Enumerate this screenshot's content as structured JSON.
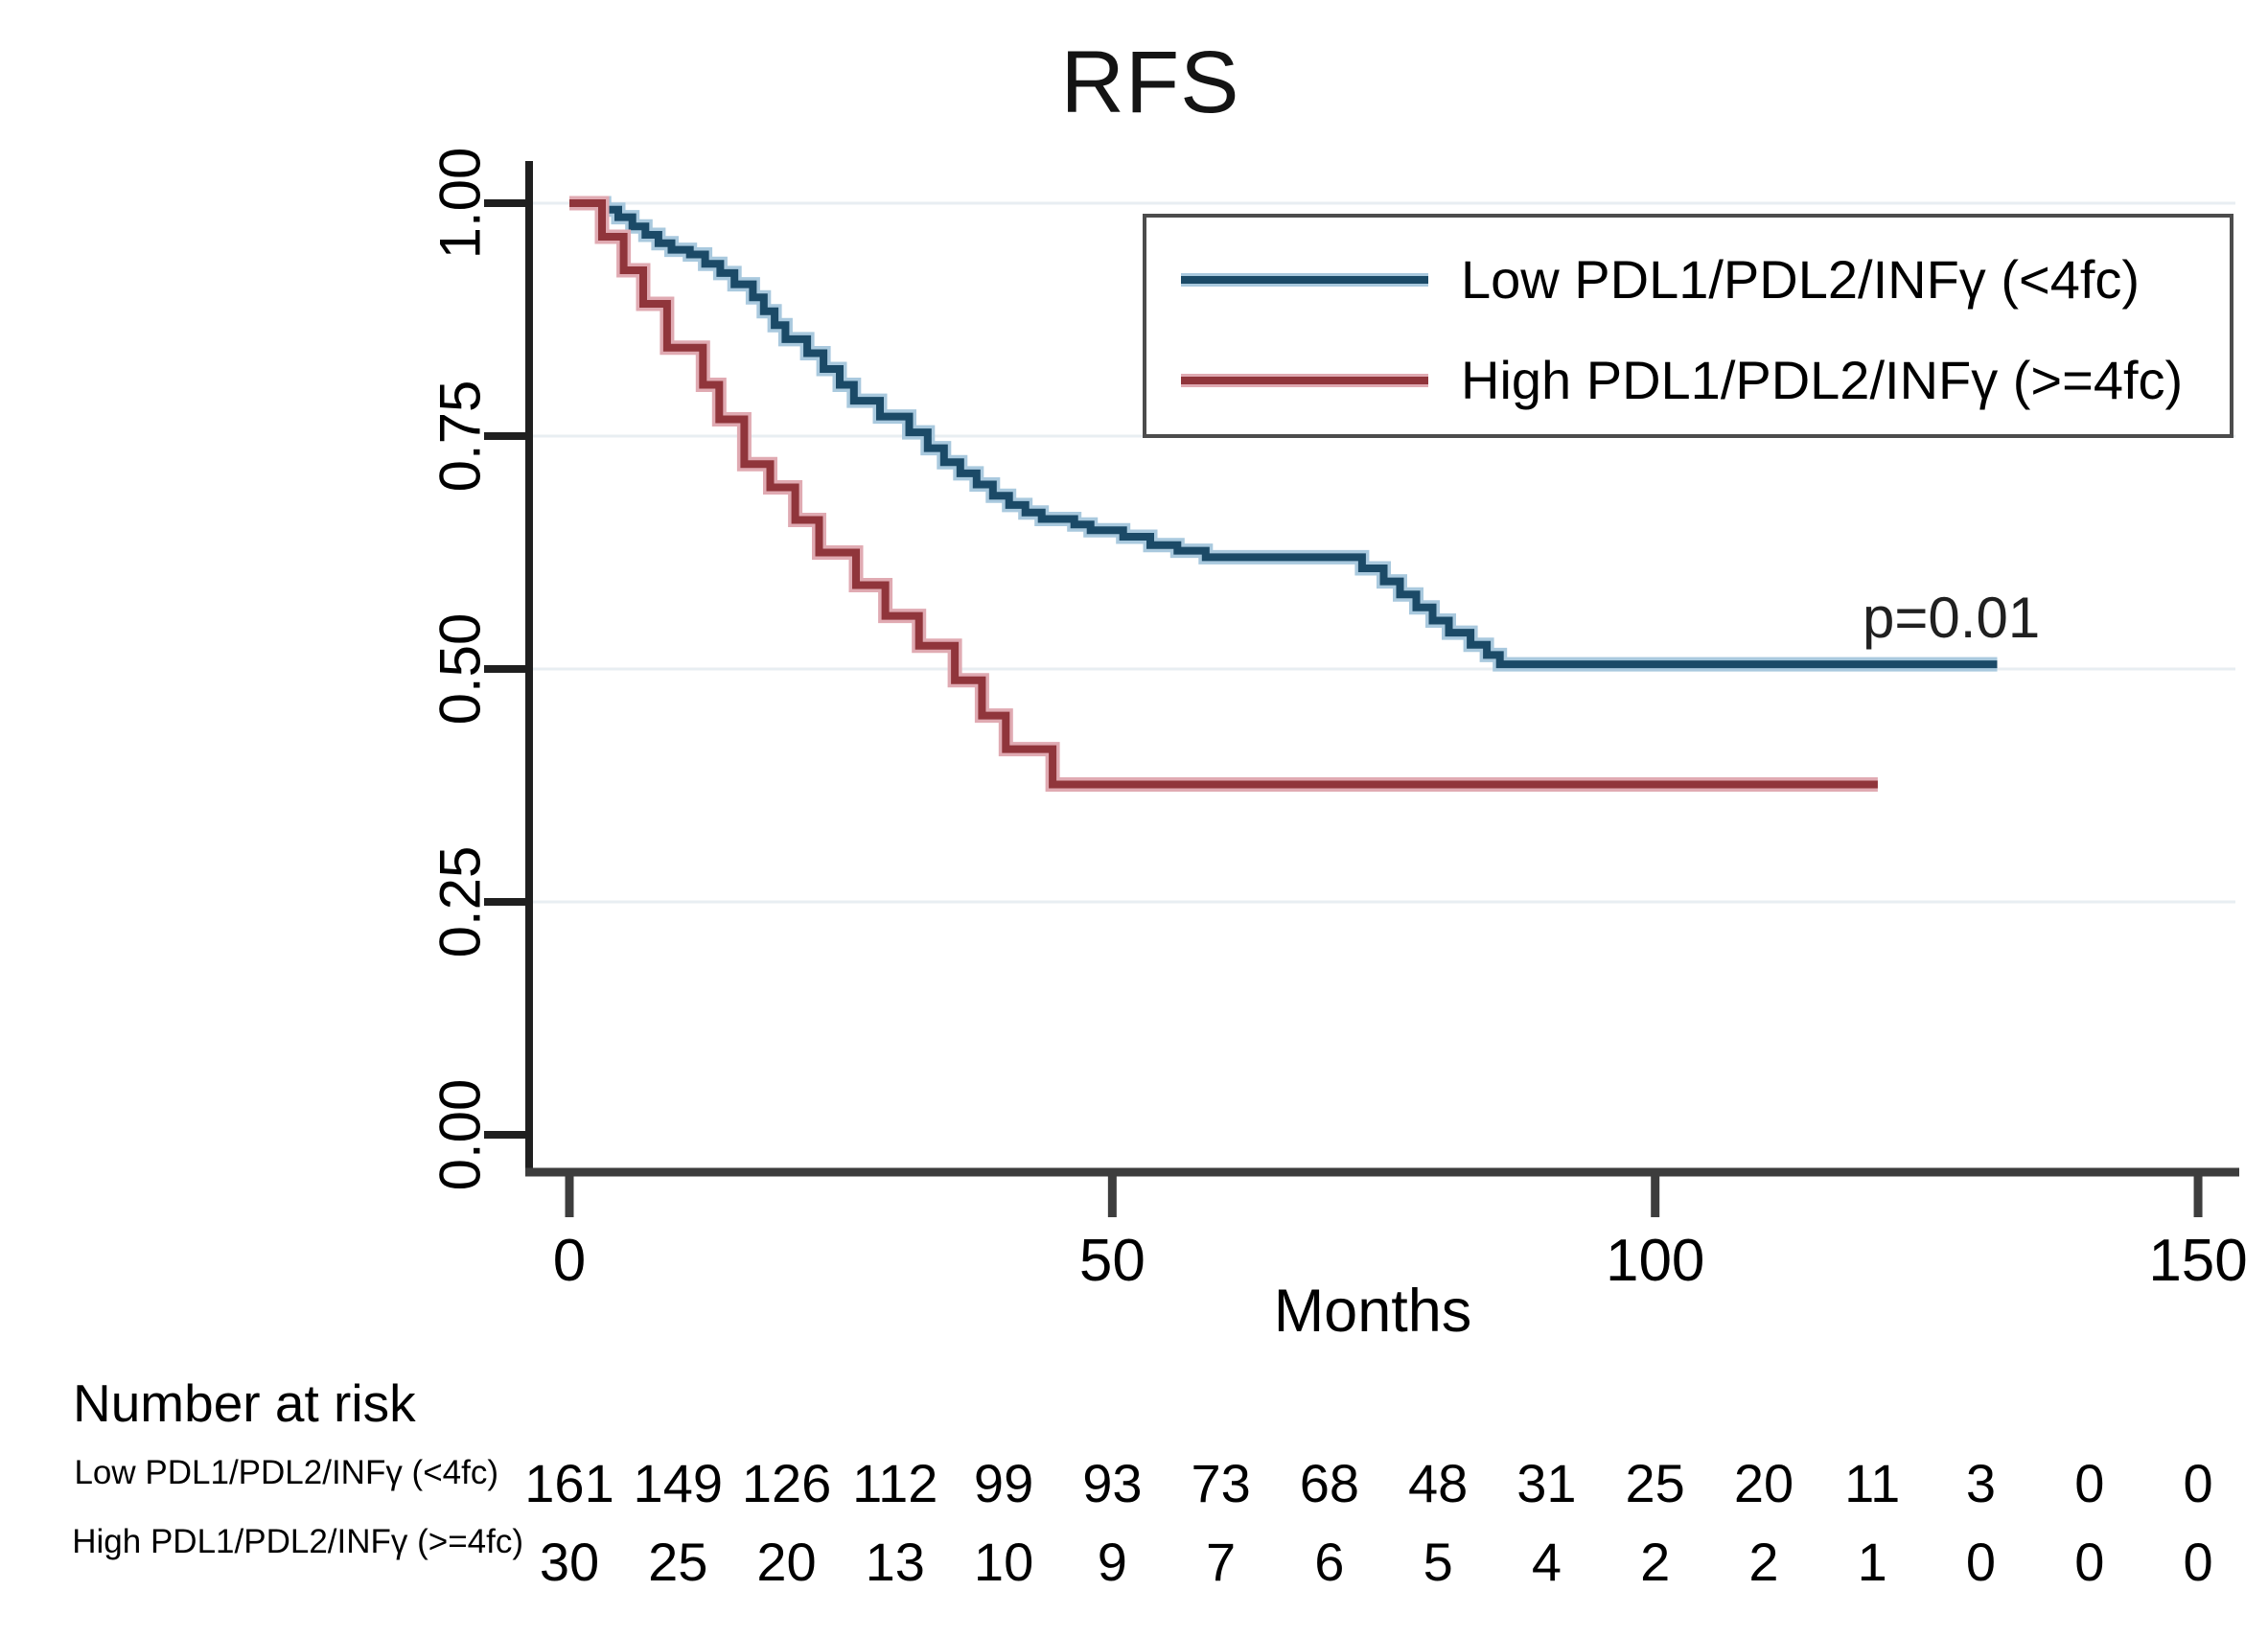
{
  "title": "RFS",
  "annotation": {
    "p_value": "p=0.01"
  },
  "axes": {
    "x_label": "Months",
    "x_ticks": [
      {
        "label": "0",
        "value": 0
      },
      {
        "label": "50",
        "value": 50
      },
      {
        "label": "100",
        "value": 100
      },
      {
        "label": "150",
        "value": 150
      }
    ],
    "y_ticks": [
      {
        "label": "1.00",
        "value": 1.0
      },
      {
        "label": "0.75",
        "value": 0.75
      },
      {
        "label": "0.50",
        "value": 0.5
      },
      {
        "label": "0.25",
        "value": 0.25
      },
      {
        "label": "0.00",
        "value": 0.0
      }
    ]
  },
  "legend": {
    "items": [
      {
        "label": "Low PDL1/PDL2/INFγ (<4fc)",
        "color": "#1b4a67",
        "halo": "#a9c9de"
      },
      {
        "label": "High PDL1/PDL2/INFγ (>=4fc)",
        "color": "#90353b",
        "halo": "#e0aab2"
      }
    ]
  },
  "chart_data": {
    "type": "line",
    "subtype": "kaplan_meier_step",
    "title": "RFS",
    "xlabel": "Months",
    "ylabel": "",
    "xlim": [
      0,
      155
    ],
    "ylim": [
      0.0,
      1.0
    ],
    "grid": "horizontal",
    "gridline_values": [
      1.0,
      0.75,
      0.5,
      0.25
    ],
    "legend_position": "top-right",
    "p_value": "p=0.01",
    "series": [
      {
        "name": "Low PDL1/PDL2/INFγ (<4fc)",
        "color": "#1b4a67",
        "halo_color": "#a9c9de",
        "end_time": 131.5,
        "points": [
          [
            0,
            1.0
          ],
          [
            3.2,
            0.993
          ],
          [
            4.5,
            0.985
          ],
          [
            5.8,
            0.975
          ],
          [
            7.0,
            0.966
          ],
          [
            8.2,
            0.957
          ],
          [
            9.4,
            0.95
          ],
          [
            11.1,
            0.945
          ],
          [
            12.5,
            0.935
          ],
          [
            13.9,
            0.925
          ],
          [
            15.2,
            0.913
          ],
          [
            16.9,
            0.899
          ],
          [
            17.9,
            0.884
          ],
          [
            18.9,
            0.869
          ],
          [
            19.9,
            0.854
          ],
          [
            21.9,
            0.839
          ],
          [
            23.4,
            0.822
          ],
          [
            24.9,
            0.805
          ],
          [
            26.2,
            0.788
          ],
          [
            28.6,
            0.771
          ],
          [
            31.3,
            0.754
          ],
          [
            33.0,
            0.737
          ],
          [
            34.5,
            0.722
          ],
          [
            36.0,
            0.71
          ],
          [
            37.5,
            0.698
          ],
          [
            39.0,
            0.686
          ],
          [
            40.5,
            0.676
          ],
          [
            42.0,
            0.668
          ],
          [
            43.5,
            0.661
          ],
          [
            46.5,
            0.655
          ],
          [
            48.0,
            0.649
          ],
          [
            51.0,
            0.642
          ],
          [
            53.5,
            0.633
          ],
          [
            56.0,
            0.627
          ],
          [
            58.6,
            0.62
          ],
          [
            73.0,
            0.608
          ],
          [
            75.0,
            0.594
          ],
          [
            76.5,
            0.58
          ],
          [
            78.0,
            0.566
          ],
          [
            79.5,
            0.552
          ],
          [
            81.0,
            0.539
          ],
          [
            83.0,
            0.526
          ],
          [
            84.5,
            0.515
          ],
          [
            85.7,
            0.505
          ]
        ]
      },
      {
        "name": "High PDL1/PDL2/INFγ (>=4fc)",
        "color": "#90353b",
        "halo_color": "#e0aab2",
        "end_time": 120.5,
        "points": [
          [
            0,
            1.0
          ],
          [
            3.0,
            0.964
          ],
          [
            5.0,
            0.928
          ],
          [
            6.8,
            0.892
          ],
          [
            9.0,
            0.845
          ],
          [
            12.3,
            0.805
          ],
          [
            13.8,
            0.768
          ],
          [
            16.1,
            0.72
          ],
          [
            18.5,
            0.695
          ],
          [
            20.8,
            0.66
          ],
          [
            23.0,
            0.625
          ],
          [
            26.4,
            0.59
          ],
          [
            29.1,
            0.557
          ],
          [
            32.2,
            0.525
          ],
          [
            35.5,
            0.488
          ],
          [
            38.0,
            0.45
          ],
          [
            40.2,
            0.414
          ],
          [
            44.5,
            0.376
          ]
        ]
      }
    ]
  },
  "risk_table": {
    "heading": "Number at risk",
    "time_points": [
      0,
      10,
      20,
      30,
      40,
      50,
      60,
      70,
      80,
      90,
      100,
      110,
      120,
      130,
      140,
      150
    ],
    "rows": [
      {
        "label": "Low PDL1/PDL2/INFγ (<4fc)",
        "counts": [
          161,
          149,
          126,
          112,
          99,
          93,
          73,
          68,
          48,
          31,
          25,
          20,
          11,
          3,
          0,
          0
        ]
      },
      {
        "label": "High PDL1/PDL2/INFγ (>=4fc)",
        "counts": [
          30,
          25,
          20,
          13,
          10,
          9,
          7,
          6,
          5,
          4,
          2,
          2,
          1,
          0,
          0,
          0
        ]
      }
    ]
  },
  "colors": {
    "background": "#ffffff",
    "grid": "#e8eef2",
    "y_axis": "#1f1f1f",
    "x_axis": "#3d3d3d",
    "legend_border": "#4c4c4c",
    "text": "#000000"
  }
}
